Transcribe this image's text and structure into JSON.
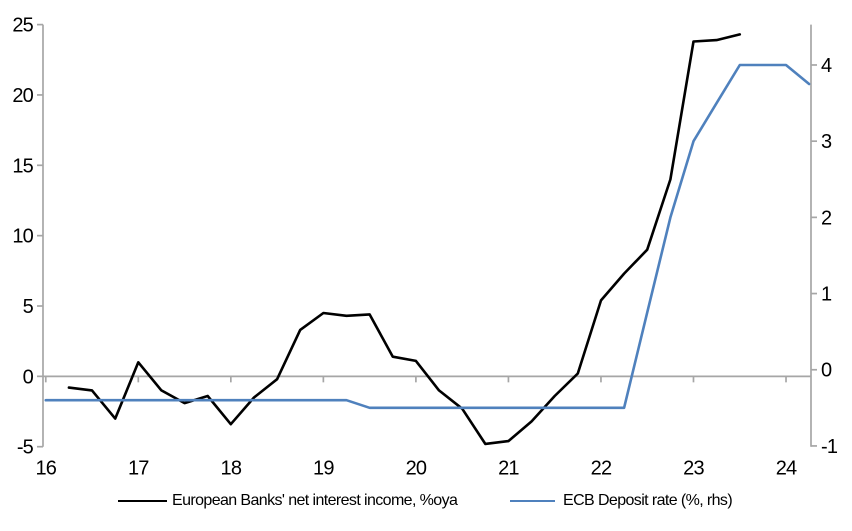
{
  "chart_data": {
    "type": "line",
    "title": "",
    "x_axis": {
      "tick_labels": [
        "16",
        "17",
        "18",
        "19",
        "20",
        "21",
        "22",
        "23",
        "24"
      ],
      "tick_values": [
        16,
        17,
        18,
        19,
        20,
        21,
        22,
        23,
        24
      ],
      "range": [
        15.97,
        24.27
      ]
    },
    "left_axis": {
      "tick_labels": [
        "25",
        "20",
        "15",
        "10",
        "5",
        "0",
        "-5"
      ],
      "tick_values": [
        25,
        20,
        15,
        10,
        5,
        0,
        -5
      ],
      "range": [
        -5,
        25
      ]
    },
    "right_axis": {
      "tick_labels": [
        "4",
        "3",
        "2",
        "1",
        "0",
        "-1"
      ],
      "tick_values": [
        4,
        3,
        2,
        1,
        0,
        -1
      ],
      "range": [
        -1.01,
        4.53
      ]
    },
    "grid": "zero-line-only",
    "legend_position": "bottom",
    "series": [
      {
        "name": "European Banks' net interest income, %oya",
        "axis": "left",
        "color": "#000000",
        "x": [
          16.25,
          16.5,
          16.75,
          17.0,
          17.25,
          17.5,
          17.75,
          18.0,
          18.25,
          18.5,
          18.75,
          19.0,
          19.25,
          19.5,
          19.75,
          20.0,
          20.25,
          20.5,
          20.75,
          21.0,
          21.25,
          21.5,
          21.75,
          22.0,
          22.25,
          22.5,
          22.75,
          23.0,
          23.25,
          23.5
        ],
        "values": [
          -0.8,
          -1.0,
          -3.0,
          1.0,
          -1.0,
          -1.9,
          -1.4,
          -3.4,
          -1.5,
          -0.2,
          3.3,
          4.5,
          4.3,
          4.4,
          1.4,
          1.1,
          -1.0,
          -2.3,
          -4.8,
          -4.6,
          -3.2,
          -1.4,
          0.2,
          5.4,
          7.3,
          9.0,
          14.0,
          23.8,
          23.9,
          24.3
        ]
      },
      {
        "name": "ECB Deposit rate (%, rhs)",
        "axis": "right",
        "color": "#4f81bd",
        "x": [
          16.0,
          16.25,
          16.5,
          16.75,
          17.0,
          17.25,
          17.5,
          17.75,
          18.0,
          18.25,
          18.5,
          18.75,
          19.0,
          19.25,
          19.5,
          19.75,
          20.0,
          20.25,
          20.5,
          20.75,
          21.0,
          21.25,
          21.5,
          21.75,
          22.0,
          22.25,
          22.5,
          22.75,
          23.0,
          23.25,
          23.5,
          23.75,
          24.0,
          24.25
        ],
        "values": [
          -0.4,
          -0.4,
          -0.4,
          -0.4,
          -0.4,
          -0.4,
          -0.4,
          -0.4,
          -0.4,
          -0.4,
          -0.4,
          -0.4,
          -0.4,
          -0.4,
          -0.5,
          -0.5,
          -0.5,
          -0.5,
          -0.5,
          -0.5,
          -0.5,
          -0.5,
          -0.5,
          -0.5,
          -0.5,
          -0.5,
          0.75,
          2.0,
          3.0,
          3.5,
          4.0,
          4.0,
          4.0,
          3.75
        ]
      }
    ]
  },
  "colors": {
    "background": "#ffffff",
    "axis": "#a6a6a6",
    "text": "#000000",
    "nii_line": "#000000",
    "ecb_line": "#4f81bd"
  }
}
